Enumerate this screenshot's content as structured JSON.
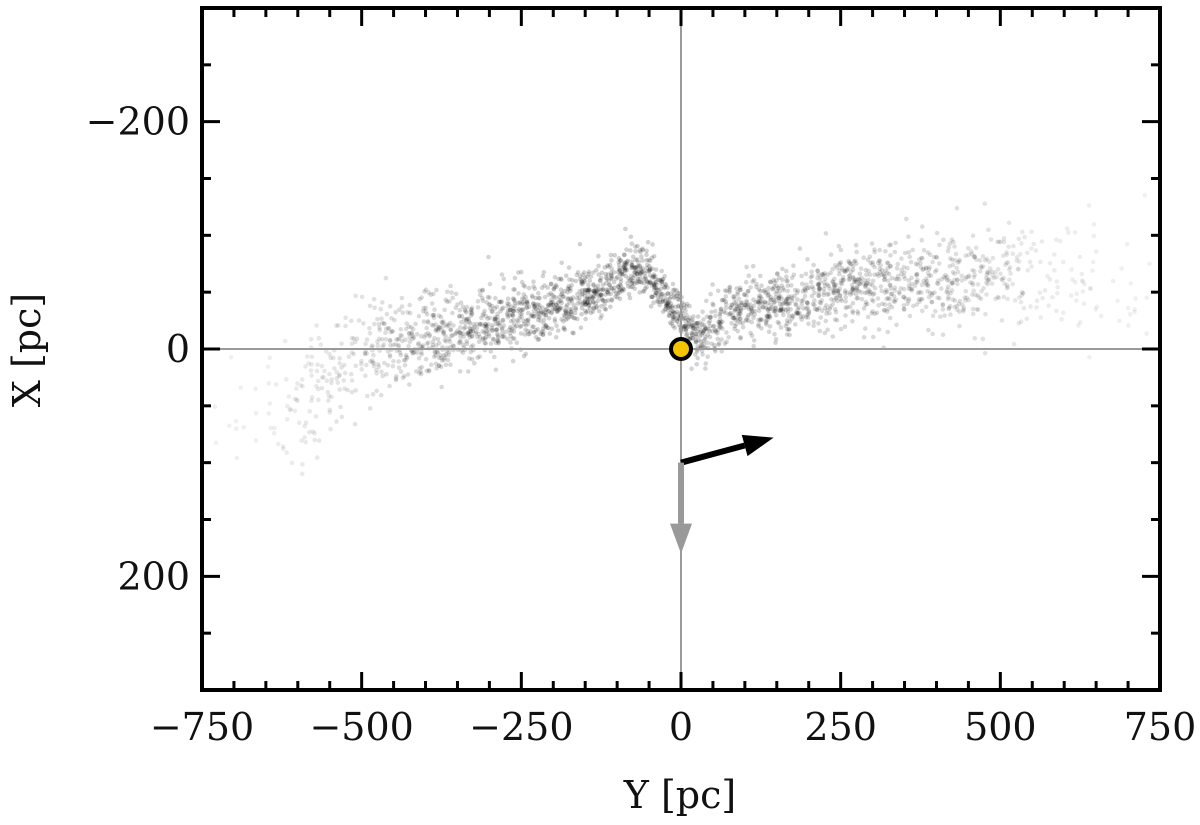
{
  "chart_data": {
    "type": "scatter",
    "xlabel": "Y [pc]",
    "ylabel": "X [pc]",
    "xlim": [
      -750,
      750
    ],
    "ylim": [
      -300,
      300
    ],
    "y_inverted": true,
    "xticks": [
      -750,
      -500,
      -250,
      0,
      250,
      500,
      750
    ],
    "xtick_labels": [
      "−750",
      "−500",
      "−250",
      "0",
      "250",
      "500",
      "750"
    ],
    "yticks": [
      -200,
      0,
      200
    ],
    "ytick_labels": [
      "−200",
      "0",
      "200"
    ],
    "reference_lines": {
      "x": 0,
      "y": 0
    },
    "grid": false,
    "sun": {
      "x": 0,
      "y": 0,
      "color": "#f5c400"
    },
    "arrows": [
      {
        "name": "black-arrow",
        "from": [
          0,
          100
        ],
        "to": [
          145,
          78
        ],
        "color": "#000000"
      },
      {
        "name": "gray-arrow",
        "from": [
          0,
          100
        ],
        "to": [
          0,
          180
        ],
        "color": "#999999"
      }
    ],
    "points_color": "#000000",
    "density_ridge": {
      "x": [
        -720,
        -650,
        -580,
        -500,
        -420,
        -350,
        -300,
        -250,
        -200,
        -150,
        -120,
        -90,
        -60,
        -30,
        0,
        30,
        60,
        100,
        140,
        180,
        220,
        260,
        300,
        350,
        400,
        450,
        500,
        550,
        600,
        650,
        700,
        740
      ],
      "y": [
        80,
        60,
        40,
        10,
        -8,
        -15,
        -22,
        -30,
        -38,
        -45,
        -52,
        -68,
        -70,
        -50,
        -30,
        -12,
        -25,
        -38,
        -40,
        -42,
        -48,
        -55,
        -58,
        -60,
        -62,
        -66,
        -70,
        -68,
        -66,
        -65,
        -63,
        -60
      ],
      "weight": [
        0.05,
        0.1,
        0.3,
        0.5,
        0.7,
        0.8,
        0.85,
        0.9,
        0.95,
        1.0,
        1.0,
        1.0,
        1.0,
        1.0,
        0.95,
        0.9,
        0.85,
        0.85,
        0.9,
        0.85,
        0.8,
        0.8,
        0.75,
        0.7,
        0.65,
        0.55,
        0.45,
        0.25,
        0.15,
        0.1,
        0.07,
        0.05
      ]
    }
  }
}
